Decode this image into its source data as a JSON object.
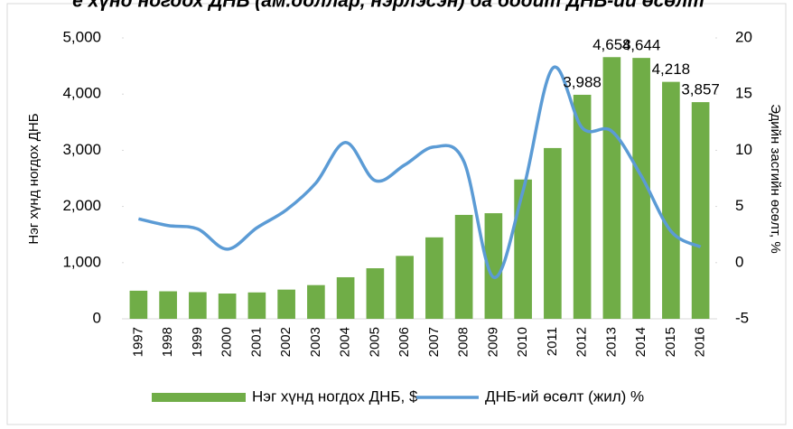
{
  "chart_data": {
    "type": "bar_line",
    "title": "е хүнд ногдох ДНБ (ам.доллар, нэрлэсэн) ба бодит ДНБ-ий өсөлт",
    "y_label": "Нэг хүнд ногдох ДНБ",
    "y2_label": "Эдийн засгийн өсөлт, %",
    "categories": [
      "1997",
      "1998",
      "1999",
      "2000",
      "2001",
      "2002",
      "2003",
      "2004",
      "2005",
      "2006",
      "2007",
      "2008",
      "2009",
      "2010",
      "2011",
      "2012",
      "2013",
      "2014",
      "2015",
      "2016"
    ],
    "series": [
      {
        "name": "Нэг хүнд ногдох ДНБ, $",
        "type": "bar",
        "color": "#70ad47",
        "values": [
          500,
          490,
          475,
          450,
          470,
          520,
          600,
          740,
          900,
          1120,
          1450,
          1850,
          1880,
          2480,
          3040,
          3988,
          4658,
          4644,
          4218,
          3857
        ],
        "value_labels": [
          null,
          null,
          null,
          null,
          null,
          null,
          null,
          null,
          null,
          null,
          null,
          null,
          null,
          null,
          null,
          "3,988",
          "4,658",
          "4,644",
          "4,218",
          "3,857"
        ]
      },
      {
        "name": "ДНБ-ий өсөлт (жил) %",
        "type": "line",
        "axis": "y2",
        "color": "#5b9bd5",
        "values": [
          3.9,
          3.3,
          3.0,
          1.2,
          3.1,
          4.7,
          7.1,
          10.7,
          7.3,
          8.7,
          10.3,
          9.0,
          -1.3,
          6.4,
          17.3,
          12.0,
          11.7,
          7.7,
          2.8,
          1.4
        ]
      }
    ],
    "ylim": [
      0,
      5000
    ],
    "yticks": [
      0,
      {
        "value": 1000,
        "label": "1,000"
      },
      {
        "value": 2000,
        "label": "2,000"
      },
      {
        "value": 3000,
        "label": "3,000"
      },
      {
        "value": 4000,
        "label": "4,000"
      },
      {
        "value": 5000,
        "label": "5,000"
      }
    ],
    "y2lim": [
      -5,
      20
    ],
    "y2ticks": [
      -5,
      0,
      5,
      10,
      15,
      20
    ],
    "legend": "bottom"
  }
}
